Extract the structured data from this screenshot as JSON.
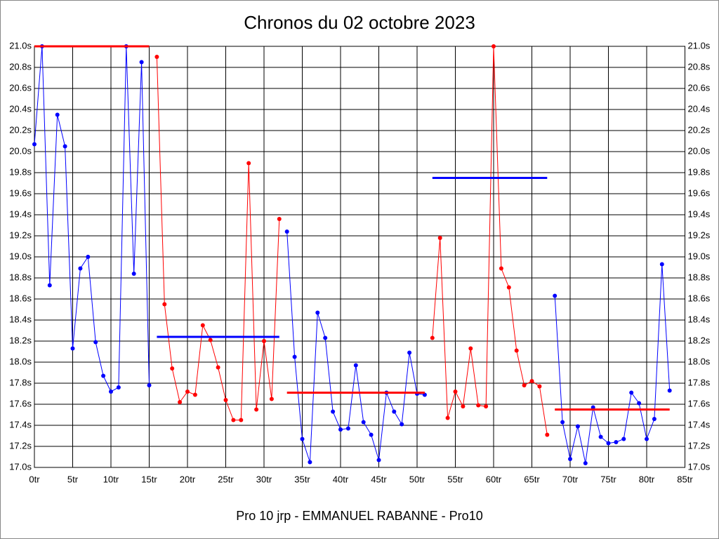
{
  "chart_data": {
    "type": "line",
    "title": "Chronos du 02 octobre 2023",
    "footer": "Pro 10 jrp - EMMANUEL RABANNE - Pro10",
    "xlim": [
      0,
      85
    ],
    "xticks": [
      {
        "value": 0,
        "label": "0tr"
      },
      {
        "value": 5,
        "label": "5tr"
      },
      {
        "value": 10,
        "label": "10tr"
      },
      {
        "value": 15,
        "label": "15tr"
      },
      {
        "value": 20,
        "label": "20tr"
      },
      {
        "value": 25,
        "label": "25tr"
      },
      {
        "value": 30,
        "label": "30tr"
      },
      {
        "value": 35,
        "label": "35tr"
      },
      {
        "value": 40,
        "label": "40tr"
      },
      {
        "value": 45,
        "label": "45tr"
      },
      {
        "value": 50,
        "label": "50tr"
      },
      {
        "value": 55,
        "label": "55tr"
      },
      {
        "value": 60,
        "label": "60tr"
      },
      {
        "value": 65,
        "label": "65tr"
      },
      {
        "value": 70,
        "label": "70tr"
      },
      {
        "value": 75,
        "label": "75tr"
      },
      {
        "value": 80,
        "label": "80tr"
      },
      {
        "value": 85,
        "label": "85tr"
      }
    ],
    "ylim": [
      17.0,
      21.0
    ],
    "yticks": [
      {
        "value": 17.0,
        "label": "17.0s"
      },
      {
        "value": 17.2,
        "label": "17.2s"
      },
      {
        "value": 17.4,
        "label": "17.4s"
      },
      {
        "value": 17.6,
        "label": "17.6s"
      },
      {
        "value": 17.8,
        "label": "17.8s"
      },
      {
        "value": 18.0,
        "label": "18.0s"
      },
      {
        "value": 18.2,
        "label": "18.2s"
      },
      {
        "value": 18.4,
        "label": "18.4s"
      },
      {
        "value": 18.6,
        "label": "18.6s"
      },
      {
        "value": 18.8,
        "label": "18.8s"
      },
      {
        "value": 19.0,
        "label": "19.0s"
      },
      {
        "value": 19.2,
        "label": "19.2s"
      },
      {
        "value": 19.4,
        "label": "19.4s"
      },
      {
        "value": 19.6,
        "label": "19.6s"
      },
      {
        "value": 19.8,
        "label": "19.8s"
      },
      {
        "value": 20.0,
        "label": "20.0s"
      },
      {
        "value": 20.2,
        "label": "20.2s"
      },
      {
        "value": 20.4,
        "label": "20.4s"
      },
      {
        "value": 20.6,
        "label": "20.6s"
      },
      {
        "value": 20.8,
        "label": "20.8s"
      },
      {
        "value": 21.0,
        "label": "21.0s"
      }
    ],
    "grid": true,
    "series": [
      {
        "color": "#0000ff",
        "marker": true,
        "x": [
          0,
          1,
          2,
          3,
          4,
          5,
          6,
          7,
          8,
          9,
          10,
          11,
          12,
          13,
          14,
          15
        ],
        "values": [
          20.07,
          21.0,
          18.73,
          20.35,
          20.05,
          18.13,
          18.89,
          19.0,
          18.19,
          17.87,
          17.72,
          17.76,
          21.0,
          18.84,
          20.85,
          17.78
        ]
      },
      {
        "color": "#ff0000",
        "marker": true,
        "x": [
          16,
          17,
          18,
          19,
          20,
          21,
          22,
          23,
          24,
          25,
          26,
          27,
          28,
          29,
          30,
          31,
          32
        ],
        "values": [
          20.9,
          18.55,
          17.94,
          17.62,
          17.72,
          17.69,
          18.35,
          18.21,
          17.95,
          17.64,
          17.45,
          17.45,
          19.89,
          17.55,
          18.2,
          17.65,
          19.36
        ]
      },
      {
        "color": "#0000ff",
        "marker": true,
        "x": [
          33,
          34,
          35,
          36,
          37,
          38,
          39,
          40,
          41,
          42,
          43,
          44,
          45,
          46,
          47,
          48,
          49,
          50,
          51
        ],
        "values": [
          19.24,
          18.05,
          17.27,
          17.05,
          18.47,
          18.23,
          17.53,
          17.36,
          17.37,
          17.97,
          17.43,
          17.31,
          17.07,
          17.71,
          17.53,
          17.41,
          18.09,
          17.7,
          17.69
        ]
      },
      {
        "color": "#ff0000",
        "marker": true,
        "x": [
          52,
          53,
          54,
          55,
          56,
          57,
          58,
          59,
          60,
          61,
          62,
          63,
          64,
          65,
          66,
          67
        ],
        "values": [
          18.23,
          19.18,
          17.47,
          17.72,
          17.58,
          18.13,
          17.59,
          17.58,
          21.0,
          18.89,
          18.71,
          18.11,
          17.78,
          17.82,
          17.77,
          17.31
        ]
      },
      {
        "color": "#0000ff",
        "marker": true,
        "x": [
          68,
          69,
          70,
          71,
          72,
          73,
          74,
          75,
          76,
          77,
          78,
          79,
          80,
          81,
          82,
          83
        ],
        "values": [
          18.63,
          17.43,
          17.08,
          17.39,
          17.04,
          17.57,
          17.29,
          17.23,
          17.24,
          17.27,
          17.71,
          17.61,
          17.27,
          17.46,
          18.93,
          17.73
        ]
      },
      {
        "color": "#ff0000",
        "marker": false,
        "x": [
          0,
          15
        ],
        "values": [
          21.0,
          21.0
        ]
      },
      {
        "color": "#0000ff",
        "marker": false,
        "x": [
          16,
          32
        ],
        "values": [
          18.24,
          18.24
        ]
      },
      {
        "color": "#ff0000",
        "marker": false,
        "x": [
          33,
          51
        ],
        "values": [
          17.71,
          17.71
        ]
      },
      {
        "color": "#0000ff",
        "marker": false,
        "x": [
          52,
          67
        ],
        "values": [
          19.75,
          19.75
        ]
      },
      {
        "color": "#ff0000",
        "marker": false,
        "x": [
          68,
          83
        ],
        "values": [
          17.55,
          17.55
        ]
      }
    ]
  }
}
